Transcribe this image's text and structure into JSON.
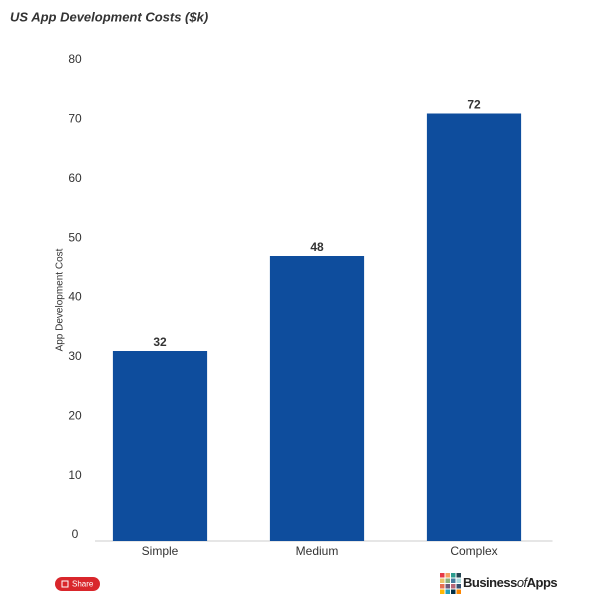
{
  "chart_data": {
    "type": "bar",
    "title": "US App Development Costs ($k)",
    "y_label": "App Development Cost",
    "categories": [
      "Simple",
      "Medium",
      "Complex"
    ],
    "values": [
      32,
      48,
      72
    ],
    "color": "#0e4d9d",
    "ylim": [
      0,
      80
    ],
    "yticks": [
      0,
      10,
      20,
      30,
      40,
      50,
      60,
      70,
      80
    ],
    "grid": false
  },
  "share_button": "Share",
  "logo": {
    "parts": [
      "Business",
      "of",
      "Apps"
    ]
  }
}
